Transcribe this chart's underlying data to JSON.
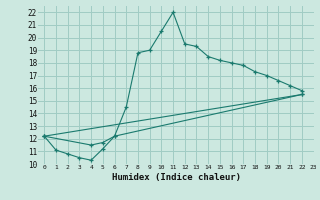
{
  "xlabel": "Humidex (Indice chaleur)",
  "bg_color": "#cce8e0",
  "grid_color": "#a0ccc4",
  "line_color": "#1a7a6e",
  "xlim": [
    -0.5,
    23
  ],
  "ylim": [
    10,
    22.5
  ],
  "xticks": [
    0,
    1,
    2,
    3,
    4,
    5,
    6,
    7,
    8,
    9,
    10,
    11,
    12,
    13,
    14,
    15,
    16,
    17,
    18,
    19,
    20,
    21,
    22,
    23
  ],
  "yticks": [
    10,
    11,
    12,
    13,
    14,
    15,
    16,
    17,
    18,
    19,
    20,
    21,
    22
  ],
  "curve1_x": [
    0,
    1,
    2,
    3,
    4,
    5,
    6,
    7,
    8,
    9,
    10,
    11,
    12,
    13,
    14,
    15,
    16,
    17,
    18,
    19,
    20,
    21,
    22
  ],
  "curve1_y": [
    12.2,
    11.1,
    10.8,
    10.5,
    10.3,
    11.2,
    12.2,
    14.5,
    18.8,
    19.0,
    20.5,
    22.0,
    19.5,
    19.3,
    18.5,
    18.2,
    18.0,
    17.8,
    17.3,
    17.0,
    16.6,
    16.2,
    15.8
  ],
  "curve2_x": [
    0,
    4,
    5,
    6,
    22
  ],
  "curve2_y": [
    12.2,
    11.5,
    11.7,
    12.2,
    15.5
  ],
  "curve3_x": [
    0,
    22
  ],
  "curve3_y": [
    12.2,
    15.5
  ]
}
